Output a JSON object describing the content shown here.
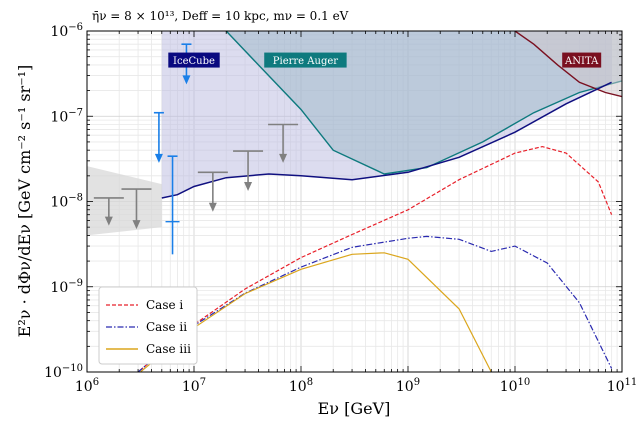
{
  "chart_data": {
    "type": "line",
    "title": "η̄ν = 8 × 10¹³, Deff = 10 kpc, mν = 0.1 eV",
    "xlabel": "Eν [GeV]",
    "ylabel": "E²ν · dΦν/dEν [GeV cm⁻² s⁻¹ sr⁻¹]",
    "x_scale": "log",
    "y_scale": "log",
    "xlim": [
      1000000.0,
      100000000000.0
    ],
    "ylim": [
      1e-10,
      1e-06
    ],
    "grid": true,
    "legend_position": "lower-left",
    "x_ticks": [
      {
        "base": "10",
        "exp": "6",
        "value": 1000000.0
      },
      {
        "base": "10",
        "exp": "7",
        "value": 10000000.0
      },
      {
        "base": "10",
        "exp": "8",
        "value": 100000000.0
      },
      {
        "base": "10",
        "exp": "9",
        "value": 1000000000.0
      },
      {
        "base": "10",
        "exp": "10",
        "value": 10000000000.0
      },
      {
        "base": "10",
        "exp": "11",
        "value": 100000000000.0
      }
    ],
    "y_ticks": [
      {
        "base": "10",
        "exp": "−10",
        "value": 1e-10
      },
      {
        "base": "10",
        "exp": "−9",
        "value": 1e-09
      },
      {
        "base": "10",
        "exp": "−8",
        "value": 1e-08
      },
      {
        "base": "10",
        "exp": "−7",
        "value": 1e-07
      },
      {
        "base": "10",
        "exp": "−6",
        "value": 1e-06
      }
    ],
    "series": [
      {
        "name": "Case i",
        "color": "#e8202a",
        "dash": "dashed",
        "x": [
          1000000.0,
          3000000.0,
          10000000.0,
          30000000.0,
          100000000.0,
          300000000.0,
          1000000000.0,
          3000000000.0,
          10000000000.0,
          18000000000.0,
          30000000000.0,
          60000000000.0,
          80000000000.0
        ],
        "y": [
          2.8e-11,
          1e-10,
          3.6e-10,
          9.4e-10,
          2.2e-09,
          4.1e-09,
          8e-09,
          1.8e-08,
          3.7e-08,
          4.4e-08,
          3.7e-08,
          1.7e-08,
          7e-09
        ]
      },
      {
        "name": "Case ii",
        "color": "#2a2ab0",
        "dash": "dashdot",
        "x": [
          1000000.0,
          3000000.0,
          10000000.0,
          30000000.0,
          100000000.0,
          300000000.0,
          1000000000.0,
          1500000000.0,
          3000000000.0,
          6000000000.0,
          10000000000.0,
          20000000000.0,
          40000000000.0,
          80000000000.0
        ],
        "y": [
          2.8e-11,
          1e-10,
          3.5e-10,
          8.4e-10,
          1.7e-09,
          2.9e-09,
          3.7e-09,
          3.9e-09,
          3.6e-09,
          2.6e-09,
          3e-09,
          1.9e-09,
          6.5e-10,
          1.1e-10
        ]
      },
      {
        "name": "Case iii",
        "color": "#dba61d",
        "dash": "solid",
        "x": [
          1000000.0,
          3000000.0,
          10000000.0,
          30000000.0,
          100000000.0,
          300000000.0,
          600000000.0,
          1000000000.0,
          3000000000.0,
          6000000000.0
        ],
        "y": [
          2.7e-11,
          9.5e-11,
          3.3e-10,
          8.3e-10,
          1.6e-09,
          2.4e-09,
          2.5e-09,
          2.1e-09,
          5.5e-10,
          1e-10
        ]
      },
      {
        "name": "IceCube (sensitivity)",
        "color": "#101080",
        "dash": "solid",
        "x": [
          5000000.0,
          7000000.0,
          10000000.0,
          20000000.0,
          50000000.0,
          100000000.0,
          300000000.0,
          1000000000.0,
          3000000000.0,
          10000000000.0,
          30000000000.0,
          80000000000.0
        ],
        "y": [
          1.1e-08,
          1.2e-08,
          1.5e-08,
          1.9e-08,
          2.1e-08,
          2e-08,
          1.8e-08,
          2.2e-08,
          3.3e-08,
          6.5e-08,
          1.4e-07,
          2.5e-07
        ]
      }
    ],
    "excluded_regions": [
      {
        "name": "IceCube",
        "fill": "#b9b9e0",
        "stroke": "#101080",
        "label_color": "#0a0a80",
        "label_at": [
          10000000.0,
          4.5e-07
        ],
        "x": [
          5000000.0,
          7000000.0,
          10000000.0,
          20000000.0,
          50000000.0,
          100000000.0,
          300000000.0,
          1000000000.0,
          3000000000.0,
          10000000000.0,
          30000000000.0,
          80000000000.0
        ],
        "y": [
          1.1e-08,
          1.2e-08,
          1.5e-08,
          1.9e-08,
          2.1e-08,
          2e-08,
          1.8e-08,
          2.2e-08,
          3.3e-08,
          6.5e-08,
          1.4e-07,
          2.5e-07
        ]
      },
      {
        "name": "Pierre Auger",
        "fill": "#9bb8c8",
        "stroke": "#0e7a7e",
        "label_color": "#0e7a7e",
        "label_at": [
          110000000.0,
          4.5e-07
        ],
        "x": [
          20000000.0,
          40000000.0,
          100000000.0,
          200000000.0,
          600000000.0,
          1500000000.0,
          5000000000.0,
          15000000000.0,
          40000000000.0,
          100000000000.0
        ],
        "y": [
          1e-06,
          4e-07,
          1.2e-07,
          4e-08,
          2.1e-08,
          2.5e-08,
          5e-08,
          1.1e-07,
          1.9e-07,
          2.6e-07
        ]
      },
      {
        "name": "ANITA",
        "fill": "#d2c8cc",
        "stroke": "#7a1020",
        "label_color": "#7a1020",
        "label_at": [
          42000000000.0,
          4.5e-07
        ],
        "x": [
          10000000000.0,
          15000000000.0,
          25000000000.0,
          40000000000.0,
          70000000000.0,
          100000000000.0
        ],
        "y": [
          1e-06,
          7e-07,
          4e-07,
          2.5e-07,
          1.9e-07,
          1.7e-07
        ]
      }
    ],
    "gray_band": {
      "color": "#d8d8d8",
      "x": [
        1000000.0,
        5000000.0
      ],
      "upper": [
        2.6e-08,
        1.6e-08
      ],
      "lower": [
        4e-09,
        5e-09
      ]
    },
    "gray_upper_limits": [
      {
        "x": 1600000.0,
        "y": 1.1e-08,
        "down_to": 5.5e-09
      },
      {
        "x": 2900000.0,
        "y": 1.4e-08,
        "down_to": 5e-09
      },
      {
        "x": 15000000.0,
        "y": 2.2e-08,
        "down_to": 8e-09
      },
      {
        "x": 32000000.0,
        "y": 3.9e-08,
        "down_to": 1.4e-08
      },
      {
        "x": 68000000.0,
        "y": 8e-08,
        "down_to": 3e-08
      }
    ],
    "blue_limits": [
      {
        "x": 4700000.0,
        "top": 1.1e-07,
        "bottom": 3e-08,
        "arrow": true
      },
      {
        "x": 8500000.0,
        "top": 7e-07,
        "bottom": 2.5e-07,
        "arrow": true
      },
      {
        "x": 6300000.0,
        "top": 3.4e-08,
        "bottom": 2.4e-09,
        "cap": 5.8e-09,
        "arrow": false
      }
    ]
  }
}
